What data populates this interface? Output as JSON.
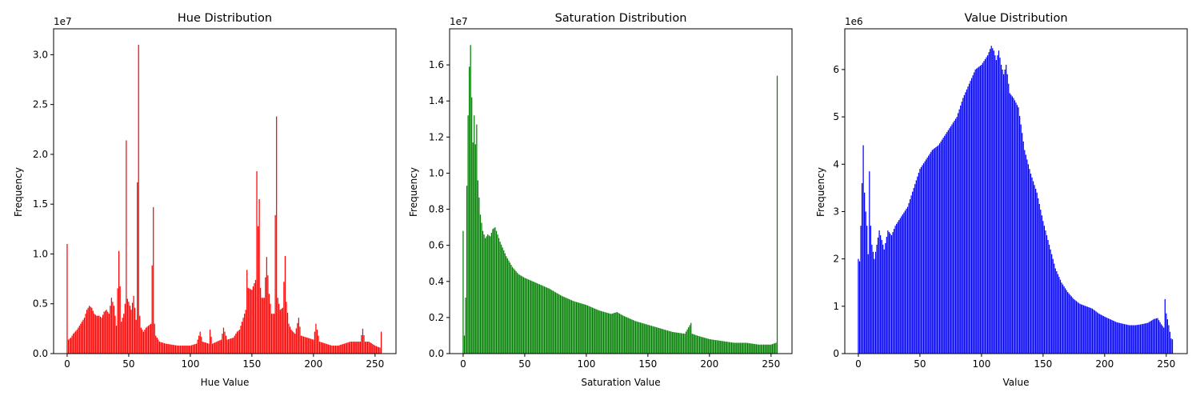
{
  "chart_data": [
    {
      "type": "bar",
      "title": "Hue Distribution",
      "xlabel": "Hue Value",
      "ylabel": "Frequency",
      "scale_label": "1e7",
      "scale": 10000000,
      "color": "#ff0000",
      "xlim": [
        -11,
        267
      ],
      "ylim": [
        0,
        32.6
      ],
      "xticks": [
        0,
        50,
        100,
        150,
        200,
        250
      ],
      "xtick_labels": [
        "0",
        "50",
        "100",
        "150",
        "200",
        "250"
      ],
      "yticks": [
        0,
        5,
        10,
        15,
        20,
        25,
        30
      ],
      "ytick_labels": [
        "0.0",
        "0.5",
        "1.0",
        "1.5",
        "2.0",
        "2.5",
        "3.0"
      ],
      "keypoints": [
        [
          0,
          11.0
        ],
        [
          1,
          1.4
        ],
        [
          3,
          1.6
        ],
        [
          5,
          2.0
        ],
        [
          8,
          2.4
        ],
        [
          10,
          2.8
        ],
        [
          12,
          3.2
        ],
        [
          14,
          3.6
        ],
        [
          16,
          4.4
        ],
        [
          18,
          4.8
        ],
        [
          20,
          4.6
        ],
        [
          22,
          4.0
        ],
        [
          24,
          3.8
        ],
        [
          26,
          3.8
        ],
        [
          28,
          3.6
        ],
        [
          30,
          4.2
        ],
        [
          32,
          4.4
        ],
        [
          34,
          4.0
        ],
        [
          36,
          5.6
        ],
        [
          38,
          4.8
        ],
        [
          40,
          2.8
        ],
        [
          42,
          10.3
        ],
        [
          44,
          3.2
        ],
        [
          46,
          4.0
        ],
        [
          47,
          5.0
        ],
        [
          48,
          21.4
        ],
        [
          49,
          5.5
        ],
        [
          50,
          5.2
        ],
        [
          52,
          4.4
        ],
        [
          54,
          5.8
        ],
        [
          56,
          3.4
        ],
        [
          58,
          31.0
        ],
        [
          59,
          3.8
        ],
        [
          60,
          2.6
        ],
        [
          62,
          2.2
        ],
        [
          64,
          2.6
        ],
        [
          66,
          2.8
        ],
        [
          68,
          3.0
        ],
        [
          70,
          14.7
        ],
        [
          71,
          3.0
        ],
        [
          72,
          1.8
        ],
        [
          75,
          1.2
        ],
        [
          80,
          1.0
        ],
        [
          90,
          0.8
        ],
        [
          100,
          0.8
        ],
        [
          105,
          1.0
        ],
        [
          108,
          2.2
        ],
        [
          110,
          1.2
        ],
        [
          115,
          1.0
        ],
        [
          116,
          2.4
        ],
        [
          118,
          1.0
        ],
        [
          125,
          1.4
        ],
        [
          127,
          2.6
        ],
        [
          130,
          1.4
        ],
        [
          135,
          1.6
        ],
        [
          138,
          2.2
        ],
        [
          140,
          2.4
        ],
        [
          142,
          3.2
        ],
        [
          145,
          4.4
        ],
        [
          146,
          8.4
        ],
        [
          147,
          6.6
        ],
        [
          150,
          6.4
        ],
        [
          153,
          7.4
        ],
        [
          154,
          18.3
        ],
        [
          155,
          12.8
        ],
        [
          156,
          15.5
        ],
        [
          157,
          6.6
        ],
        [
          158,
          5.6
        ],
        [
          160,
          5.6
        ],
        [
          162,
          9.7
        ],
        [
          164,
          6.0
        ],
        [
          166,
          4.0
        ],
        [
          168,
          4.0
        ],
        [
          170,
          23.8
        ],
        [
          171,
          5.6
        ],
        [
          173,
          4.4
        ],
        [
          175,
          4.6
        ],
        [
          177,
          9.8
        ],
        [
          178,
          5.2
        ],
        [
          180,
          3.0
        ],
        [
          182,
          2.4
        ],
        [
          185,
          2.0
        ],
        [
          188,
          3.6
        ],
        [
          190,
          1.8
        ],
        [
          195,
          1.6
        ],
        [
          200,
          1.4
        ],
        [
          202,
          3.0
        ],
        [
          205,
          1.2
        ],
        [
          210,
          1.0
        ],
        [
          215,
          0.8
        ],
        [
          220,
          0.8
        ],
        [
          225,
          1.0
        ],
        [
          230,
          1.2
        ],
        [
          235,
          1.2
        ],
        [
          238,
          1.2
        ],
        [
          240,
          2.5
        ],
        [
          242,
          1.2
        ],
        [
          245,
          1.2
        ],
        [
          250,
          0.8
        ],
        [
          254,
          0.6
        ],
        [
          255,
          2.2
        ]
      ]
    },
    {
      "type": "bar",
      "title": "Saturation Distribution",
      "xlabel": "Saturation Value",
      "ylabel": "Frequency",
      "scale_label": "1e7",
      "scale": 10000000,
      "color": "#008000",
      "xlim": [
        -11,
        267
      ],
      "ylim": [
        0,
        1.8
      ],
      "xticks": [
        0,
        50,
        100,
        150,
        200,
        250
      ],
      "xtick_labels": [
        "0",
        "50",
        "100",
        "150",
        "200",
        "250"
      ],
      "yticks": [
        0,
        0.2,
        0.4,
        0.6,
        0.8,
        1.0,
        1.2,
        1.4,
        1.6
      ],
      "ytick_labels": [
        "0.0",
        "0.2",
        "0.4",
        "0.6",
        "0.8",
        "1.0",
        "1.2",
        "1.4",
        "1.6"
      ],
      "keypoints": [
        [
          0,
          0.68
        ],
        [
          1,
          0.1
        ],
        [
          2,
          0.31
        ],
        [
          3,
          0.93
        ],
        [
          4,
          1.32
        ],
        [
          5,
          1.59
        ],
        [
          6,
          1.71
        ],
        [
          7,
          1.42
        ],
        [
          8,
          1.17
        ],
        [
          9,
          1.32
        ],
        [
          10,
          1.16
        ],
        [
          11,
          1.27
        ],
        [
          12,
          0.96
        ],
        [
          14,
          0.77
        ],
        [
          16,
          0.68
        ],
        [
          18,
          0.64
        ],
        [
          20,
          0.66
        ],
        [
          22,
          0.65
        ],
        [
          24,
          0.69
        ],
        [
          26,
          0.7
        ],
        [
          28,
          0.66
        ],
        [
          30,
          0.62
        ],
        [
          35,
          0.54
        ],
        [
          40,
          0.48
        ],
        [
          45,
          0.44
        ],
        [
          50,
          0.42
        ],
        [
          60,
          0.39
        ],
        [
          70,
          0.36
        ],
        [
          80,
          0.32
        ],
        [
          90,
          0.29
        ],
        [
          100,
          0.27
        ],
        [
          110,
          0.24
        ],
        [
          120,
          0.22
        ],
        [
          125,
          0.23
        ],
        [
          130,
          0.21
        ],
        [
          140,
          0.18
        ],
        [
          150,
          0.16
        ],
        [
          160,
          0.14
        ],
        [
          170,
          0.12
        ],
        [
          180,
          0.11
        ],
        [
          185,
          0.17
        ],
        [
          186,
          0.11
        ],
        [
          190,
          0.1
        ],
        [
          200,
          0.08
        ],
        [
          210,
          0.07
        ],
        [
          220,
          0.06
        ],
        [
          230,
          0.06
        ],
        [
          240,
          0.05
        ],
        [
          250,
          0.05
        ],
        [
          254,
          0.06
        ],
        [
          255,
          1.54
        ]
      ]
    },
    {
      "type": "bar",
      "title": "Value Distribution",
      "xlabel": "Value",
      "ylabel": "Frequency",
      "scale_label": "1e6",
      "scale": 1000000,
      "color": "#0000ff",
      "xlim": [
        -11,
        267
      ],
      "ylim": [
        0,
        6.86
      ],
      "xticks": [
        0,
        50,
        100,
        150,
        200,
        250
      ],
      "xtick_labels": [
        "0",
        "50",
        "100",
        "150",
        "200",
        "250"
      ],
      "yticks": [
        0,
        1,
        2,
        3,
        4,
        5,
        6
      ],
      "ytick_labels": [
        "0",
        "1",
        "2",
        "3",
        "4",
        "5",
        "6"
      ],
      "keypoints": [
        [
          0,
          2.0
        ],
        [
          1,
          1.95
        ],
        [
          2,
          2.7
        ],
        [
          3,
          3.6
        ],
        [
          4,
          4.4
        ],
        [
          5,
          3.4
        ],
        [
          6,
          3.0
        ],
        [
          7,
          2.7
        ],
        [
          8,
          2.1
        ],
        [
          9,
          3.85
        ],
        [
          10,
          2.7
        ],
        [
          11,
          2.3
        ],
        [
          13,
          2.0
        ],
        [
          15,
          2.3
        ],
        [
          17,
          2.6
        ],
        [
          19,
          2.4
        ],
        [
          21,
          2.2
        ],
        [
          24,
          2.6
        ],
        [
          27,
          2.5
        ],
        [
          30,
          2.7
        ],
        [
          35,
          2.9
        ],
        [
          40,
          3.1
        ],
        [
          45,
          3.5
        ],
        [
          50,
          3.9
        ],
        [
          55,
          4.1
        ],
        [
          60,
          4.3
        ],
        [
          65,
          4.4
        ],
        [
          70,
          4.6
        ],
        [
          75,
          4.8
        ],
        [
          80,
          5.0
        ],
        [
          85,
          5.4
        ],
        [
          90,
          5.7
        ],
        [
          95,
          6.0
        ],
        [
          100,
          6.1
        ],
        [
          105,
          6.3
        ],
        [
          108,
          6.5
        ],
        [
          110,
          6.4
        ],
        [
          112,
          6.2
        ],
        [
          114,
          6.4
        ],
        [
          116,
          6.1
        ],
        [
          118,
          5.9
        ],
        [
          120,
          6.1
        ],
        [
          123,
          5.5
        ],
        [
          126,
          5.4
        ],
        [
          130,
          5.2
        ],
        [
          135,
          4.3
        ],
        [
          140,
          3.8
        ],
        [
          145,
          3.4
        ],
        [
          150,
          2.8
        ],
        [
          155,
          2.3
        ],
        [
          160,
          1.8
        ],
        [
          165,
          1.5
        ],
        [
          170,
          1.3
        ],
        [
          175,
          1.15
        ],
        [
          180,
          1.05
        ],
        [
          185,
          1.0
        ],
        [
          190,
          0.95
        ],
        [
          195,
          0.85
        ],
        [
          200,
          0.78
        ],
        [
          205,
          0.72
        ],
        [
          210,
          0.66
        ],
        [
          215,
          0.63
        ],
        [
          220,
          0.6
        ],
        [
          225,
          0.6
        ],
        [
          230,
          0.62
        ],
        [
          235,
          0.65
        ],
        [
          240,
          0.73
        ],
        [
          243,
          0.75
        ],
        [
          246,
          0.62
        ],
        [
          248,
          0.55
        ],
        [
          249,
          1.15
        ],
        [
          250,
          0.85
        ],
        [
          252,
          0.6
        ],
        [
          254,
          0.32
        ],
        [
          255,
          0.3
        ]
      ]
    }
  ]
}
